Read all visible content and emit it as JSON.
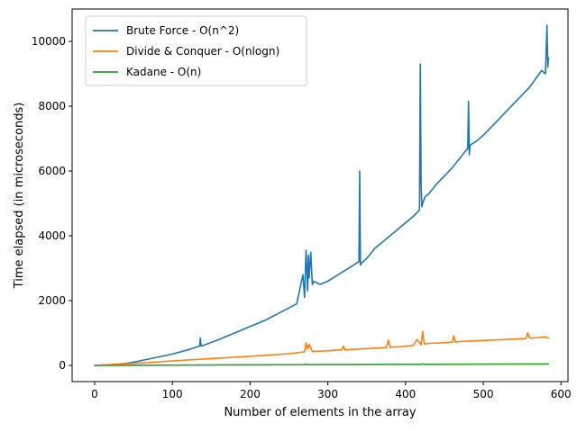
{
  "chart_data": {
    "type": "line",
    "title": "",
    "xlabel": "Number of elements in the array",
    "ylabel": "Time elapsed (in microseconds)",
    "xlim": [
      -29,
      609
    ],
    "ylim": [
      -500,
      11000
    ],
    "xticks": [
      0,
      100,
      200,
      300,
      400,
      500,
      600
    ],
    "yticks": [
      0,
      2000,
      4000,
      6000,
      8000,
      10000
    ],
    "grid": false,
    "legend_position": "top-left",
    "series": [
      {
        "name": "Brute Force - O(n^2)",
        "color": "#1f77b4",
        "x": [
          0,
          20,
          40,
          50,
          60,
          80,
          100,
          120,
          135,
          136,
          137,
          140,
          160,
          180,
          200,
          220,
          240,
          260,
          268,
          270,
          272,
          274,
          275,
          276,
          278,
          280,
          282,
          290,
          300,
          320,
          340,
          341,
          342,
          343,
          350,
          360,
          380,
          400,
          410,
          418,
          419,
          420,
          421,
          422,
          425,
          430,
          440,
          460,
          480,
          481,
          482,
          483,
          490,
          500,
          520,
          540,
          560,
          575,
          580,
          582,
          583,
          584
        ],
        "y": [
          0,
          20,
          60,
          100,
          150,
          250,
          350,
          480,
          600,
          850,
          600,
          620,
          800,
          1000,
          1200,
          1400,
          1650,
          1900,
          2800,
          2100,
          3550,
          2300,
          3400,
          2700,
          3500,
          2500,
          2600,
          2500,
          2600,
          2900,
          3200,
          6000,
          3100,
          3150,
          3300,
          3600,
          4000,
          4400,
          4600,
          4800,
          9300,
          5600,
          4900,
          5000,
          5200,
          5300,
          5600,
          6100,
          6700,
          8150,
          6500,
          6800,
          6900,
          7100,
          7600,
          8100,
          8600,
          9100,
          9000,
          10500,
          9200,
          9500
        ]
      },
      {
        "name": "Divide & Conquer - O(nlogn)",
        "color": "#ff7f0e",
        "x": [
          0,
          50,
          100,
          150,
          200,
          250,
          270,
          272,
          274,
          276,
          280,
          300,
          318,
          320,
          322,
          350,
          375,
          378,
          380,
          400,
          410,
          415,
          420,
          422,
          424,
          430,
          450,
          460,
          462,
          464,
          470,
          500,
          520,
          540,
          555,
          557,
          560,
          570,
          580,
          584
        ],
        "y": [
          0,
          60,
          140,
          210,
          280,
          360,
          420,
          700,
          500,
          650,
          430,
          450,
          480,
          600,
          480,
          520,
          550,
          780,
          560,
          590,
          620,
          800,
          640,
          1050,
          660,
          680,
          700,
          720,
          920,
          720,
          740,
          770,
          790,
          810,
          830,
          1000,
          840,
          860,
          880,
          840
        ]
      },
      {
        "name": "Kadane - O(n)",
        "color": "#2ca02c",
        "x": [
          0,
          100,
          200,
          270,
          272,
          274,
          300,
          400,
          420,
          422,
          424,
          500,
          584
        ],
        "y": [
          0,
          8,
          16,
          22,
          45,
          22,
          25,
          32,
          34,
          50,
          34,
          40,
          45
        ]
      }
    ]
  }
}
